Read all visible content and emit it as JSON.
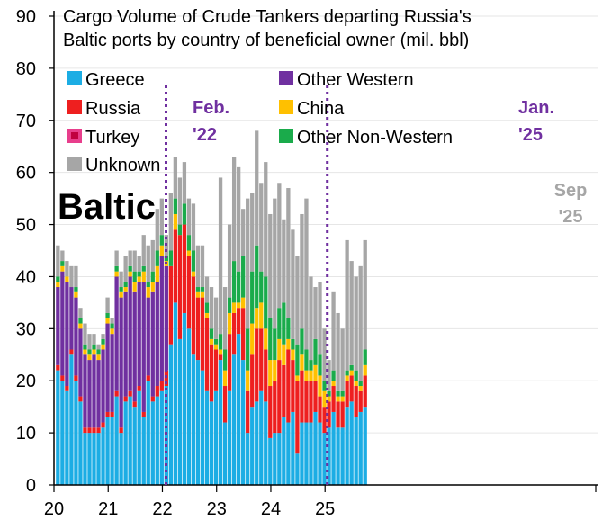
{
  "chart_data": {
    "type": "bar",
    "stacked": true,
    "title": "Cargo Volume of Crude Tankers departing Russia's Baltic ports by country of beneficial owner (mil. bbl)",
    "title_lines": [
      "Cargo Volume of Crude Tankers departing Russia's",
      "Baltic ports by country of beneficial owner (mil. bbl)"
    ],
    "panel_label": "Baltic",
    "ylim": [
      0,
      90
    ],
    "yticks": [
      0,
      10,
      20,
      30,
      40,
      50,
      60,
      70,
      80,
      90
    ],
    "xticks": [
      {
        "label": "20",
        "index": 0
      },
      {
        "label": "21",
        "index": 12
      },
      {
        "label": "22",
        "index": 24
      },
      {
        "label": "23",
        "index": 36
      },
      {
        "label": "24",
        "index": 48
      },
      {
        "label": "25",
        "index": 60
      }
    ],
    "legend": {
      "placement": "top-left, two columns"
    },
    "series": [
      {
        "name": "Greece",
        "color": "#1cade4",
        "values": [
          22,
          20,
          18,
          25,
          20,
          16,
          10,
          10,
          10,
          10,
          11,
          13,
          13,
          17,
          10,
          16,
          17,
          15,
          18,
          13,
          20,
          16,
          17,
          18,
          19,
          27,
          35,
          28,
          33,
          30,
          25,
          24,
          22,
          18,
          16,
          18,
          24,
          12,
          18,
          25,
          29,
          24,
          10,
          15,
          16,
          18,
          16,
          9,
          10,
          10,
          13,
          12,
          14,
          6,
          12,
          12,
          12,
          14,
          12,
          10,
          11,
          14,
          11,
          11,
          15,
          16,
          13,
          14,
          15
        ]
      },
      {
        "name": "Russia",
        "color": "#ee1f1f",
        "values": [
          1,
          1,
          1,
          1,
          1,
          1,
          1,
          1,
          1,
          1,
          1,
          1,
          1,
          1,
          1,
          1,
          1,
          1,
          1,
          1,
          1,
          1,
          2,
          2,
          3,
          15,
          14,
          20,
          17,
          14,
          15,
          12,
          14,
          14,
          11,
          8,
          1,
          7,
          11,
          8,
          5,
          10,
          8,
          10,
          14,
          12,
          10,
          10,
          10,
          14,
          10,
          14,
          10,
          14,
          10,
          8,
          8,
          6,
          5,
          5,
          5,
          5,
          5,
          5,
          5,
          5,
          6,
          4,
          6
        ]
      },
      {
        "name": "Turkey",
        "color": "#e83e8c",
        "values": [
          0,
          0,
          0,
          0,
          0,
          0,
          0,
          0,
          0,
          0,
          0,
          0,
          0,
          0,
          0,
          0,
          0,
          0,
          0,
          0,
          0,
          0,
          0,
          0,
          0,
          0,
          0,
          0,
          0,
          0,
          0,
          0,
          0,
          0,
          0,
          0,
          0,
          0,
          0,
          0,
          0,
          0,
          0,
          0,
          0,
          0,
          0,
          0,
          0,
          0,
          0,
          0,
          0,
          0,
          0,
          0,
          0,
          0,
          0,
          0,
          0,
          0,
          0,
          0,
          0,
          0,
          0,
          0,
          0
        ]
      },
      {
        "name": "Other Western",
        "color": "#7030a0",
        "values": [
          15,
          20,
          20,
          12,
          15,
          13,
          14,
          13,
          14,
          13,
          14,
          17,
          15,
          22,
          25,
          20,
          22,
          21,
          20,
          25,
          15,
          20,
          20,
          24,
          20,
          0,
          0,
          0,
          0,
          0,
          0,
          0,
          0,
          0,
          0,
          0,
          0,
          0,
          0,
          0,
          0,
          0,
          0,
          0,
          0,
          0,
          0,
          0,
          0,
          0,
          0,
          0,
          0,
          0,
          0,
          0,
          0,
          0,
          0,
          0,
          0,
          0,
          0,
          0,
          0,
          0,
          0,
          0,
          0
        ]
      },
      {
        "name": "China",
        "color": "#ffc000",
        "values": [
          1,
          1,
          1,
          0,
          1,
          1,
          1,
          1,
          1,
          1,
          1,
          1,
          1,
          1,
          1,
          1,
          1,
          2,
          1,
          2,
          2,
          2,
          3,
          2,
          1,
          0,
          3,
          0,
          0,
          1,
          1,
          1,
          1,
          1,
          1,
          1,
          1,
          3,
          4,
          2,
          1,
          2,
          4,
          6,
          4,
          5,
          4,
          5,
          4,
          4,
          4,
          2,
          2,
          1,
          3,
          2,
          2,
          3,
          4,
          3,
          1,
          1,
          1,
          1,
          1,
          1,
          1,
          1,
          2
        ]
      },
      {
        "name": "Other Non-Western",
        "color": "#1aab4b",
        "values": [
          1,
          1,
          0,
          0,
          1,
          1,
          1,
          1,
          1,
          1,
          1,
          1,
          1,
          1,
          1,
          1,
          1,
          2,
          1,
          1,
          1,
          2,
          3,
          2,
          1,
          3,
          3,
          2,
          4,
          3,
          4,
          1,
          1,
          2,
          2,
          1,
          3,
          4,
          3,
          8,
          6,
          8,
          8,
          10,
          12,
          6,
          10,
          8,
          6,
          6,
          8,
          4,
          2,
          6,
          5,
          4,
          2,
          5,
          4,
          2,
          1,
          2,
          1,
          1,
          1,
          1,
          2,
          1,
          3
        ]
      },
      {
        "name": "Unknown",
        "color": "#a6a6a6",
        "values": [
          6,
          2,
          3,
          4,
          4,
          2,
          4,
          3,
          2,
          1,
          1,
          3,
          1,
          3,
          3,
          5,
          3,
          4,
          3,
          6,
          7,
          6,
          8,
          7,
          4,
          11,
          8,
          9,
          8,
          7,
          9,
          8,
          8,
          5,
          8,
          8,
          30,
          12,
          14,
          20,
          20,
          9,
          25,
          15,
          22,
          17,
          22,
          20,
          25,
          24,
          16,
          25,
          21,
          17,
          22,
          29,
          16,
          10,
          14,
          10,
          6,
          15,
          15,
          12,
          25,
          20,
          18,
          22,
          21
        ]
      }
    ],
    "annotations": [
      {
        "id": "feb22",
        "lines": [
          "Feb.",
          "'22"
        ],
        "color": "#7030a0",
        "marker_index": 24.8
      },
      {
        "id": "jan25",
        "lines": [
          "Jan.",
          "'25"
        ],
        "color": "#7030a0",
        "marker_index": 60.5
      },
      {
        "id": "sep25",
        "lines": [
          "Sep",
          "'25"
        ],
        "color": "#a6a6a6",
        "marker_index": 68
      }
    ]
  }
}
